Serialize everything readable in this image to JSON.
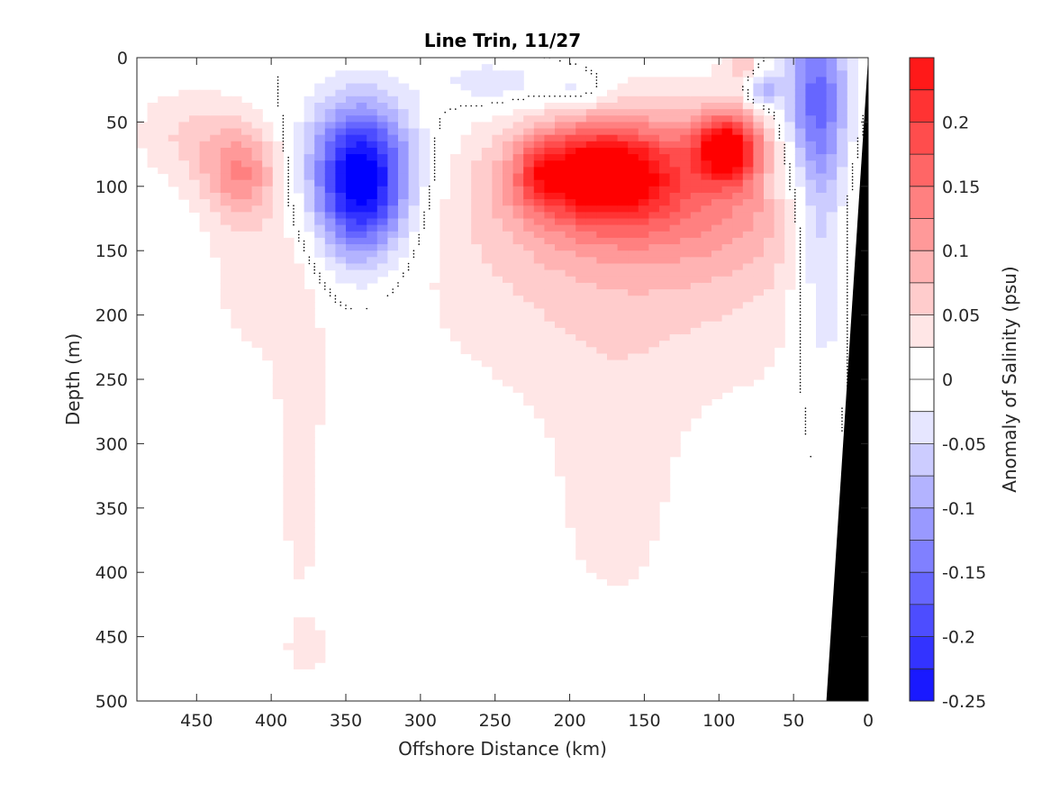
{
  "chart_data": {
    "type": "heatmap",
    "subtype": "filled-contour",
    "title": "Line Trin, 11/27",
    "xlabel": "Offshore Distance (km)",
    "ylabel": "Depth (m)",
    "colorbar_label": "Anomaly of Salinity (psu)",
    "xlim": [
      490,
      0
    ],
    "x_reversed": true,
    "ylim": [
      0,
      500
    ],
    "y_reversed": true,
    "x_ticks": [
      450,
      400,
      350,
      300,
      250,
      200,
      150,
      100,
      50,
      0
    ],
    "y_ticks": [
      0,
      50,
      100,
      150,
      200,
      250,
      300,
      350,
      400,
      450,
      500
    ],
    "colorbar_ticks": [
      0.2,
      0.15,
      0.1,
      0.05,
      0,
      -0.05,
      -0.1,
      -0.15,
      -0.2,
      -0.25
    ],
    "colorbar_range": [
      -0.25,
      0.25
    ],
    "contour_levels": [
      -0.25,
      -0.225,
      -0.2,
      -0.175,
      -0.15,
      -0.125,
      -0.1,
      -0.075,
      -0.05,
      -0.025,
      0,
      0.025,
      0.05,
      0.075,
      0.1,
      0.125,
      0.15,
      0.175,
      0.2,
      0.225,
      0.25
    ],
    "colormap": {
      "negative": "#0000ff",
      "zero": "#ffffff",
      "positive": "#ff0000"
    },
    "bathymetry_color": "#000000",
    "bathymetry_edge": [
      [
        0,
        0
      ],
      [
        28,
        500
      ],
      [
        0,
        500
      ]
    ],
    "features": [
      {
        "sign": "positive",
        "x": 180,
        "y": 90,
        "rx": 45,
        "ry": 35,
        "amp": 0.21
      },
      {
        "sign": "positive",
        "x": 95,
        "y": 70,
        "rx": 20,
        "ry": 25,
        "amp": 0.22
      },
      {
        "sign": "positive",
        "x": 140,
        "y": 100,
        "rx": 110,
        "ry": 65,
        "amp": 0.12
      },
      {
        "sign": "positive",
        "x": 220,
        "y": 90,
        "rx": 15,
        "ry": 25,
        "amp": 0.07
      },
      {
        "sign": "positive",
        "x": 160,
        "y": 180,
        "rx": 150,
        "ry": 110,
        "amp": 0.05
      },
      {
        "sign": "positive",
        "x": 170,
        "y": 350,
        "rx": 45,
        "ry": 100,
        "amp": 0.035
      },
      {
        "sign": "positive",
        "x": 420,
        "y": 90,
        "rx": 25,
        "ry": 35,
        "amp": 0.1
      },
      {
        "sign": "positive",
        "x": 455,
        "y": 60,
        "rx": 40,
        "ry": 40,
        "amp": 0.05
      },
      {
        "sign": "positive",
        "x": 410,
        "y": 160,
        "rx": 40,
        "ry": 90,
        "amp": 0.035
      },
      {
        "sign": "positive",
        "x": 380,
        "y": 320,
        "rx": 18,
        "ry": 150,
        "amp": 0.035
      },
      {
        "sign": "positive",
        "x": 375,
        "y": 460,
        "rx": 15,
        "ry": 20,
        "amp": 0.03
      },
      {
        "sign": "positive",
        "x": 440,
        "y": 430,
        "rx": 6,
        "ry": 8,
        "amp": 0.03
      },
      {
        "sign": "positive",
        "x": 85,
        "y": 5,
        "rx": 12,
        "ry": 10,
        "amp": 0.06
      },
      {
        "sign": "negative",
        "x": 340,
        "y": 105,
        "rx": 30,
        "ry": 55,
        "amp": -0.22
      },
      {
        "sign": "negative",
        "x": 340,
        "y": 75,
        "rx": 40,
        "ry": 50,
        "amp": -0.1
      },
      {
        "sign": "negative",
        "x": 250,
        "y": 20,
        "rx": 40,
        "ry": 20,
        "amp": -0.05
      },
      {
        "sign": "negative",
        "x": 195,
        "y": 25,
        "rx": 25,
        "ry": 15,
        "amp": -0.05
      },
      {
        "sign": "negative",
        "x": 70,
        "y": 25,
        "rx": 10,
        "ry": 15,
        "amp": -0.1
      },
      {
        "sign": "negative",
        "x": 35,
        "y": 40,
        "rx": 22,
        "ry": 80,
        "amp": -0.17
      },
      {
        "sign": "negative",
        "x": 30,
        "y": 160,
        "rx": 18,
        "ry": 100,
        "amp": -0.07
      },
      {
        "sign": "negative",
        "x": 65,
        "y": 100,
        "rx": 8,
        "ry": 12,
        "amp": -0.04
      }
    ]
  }
}
